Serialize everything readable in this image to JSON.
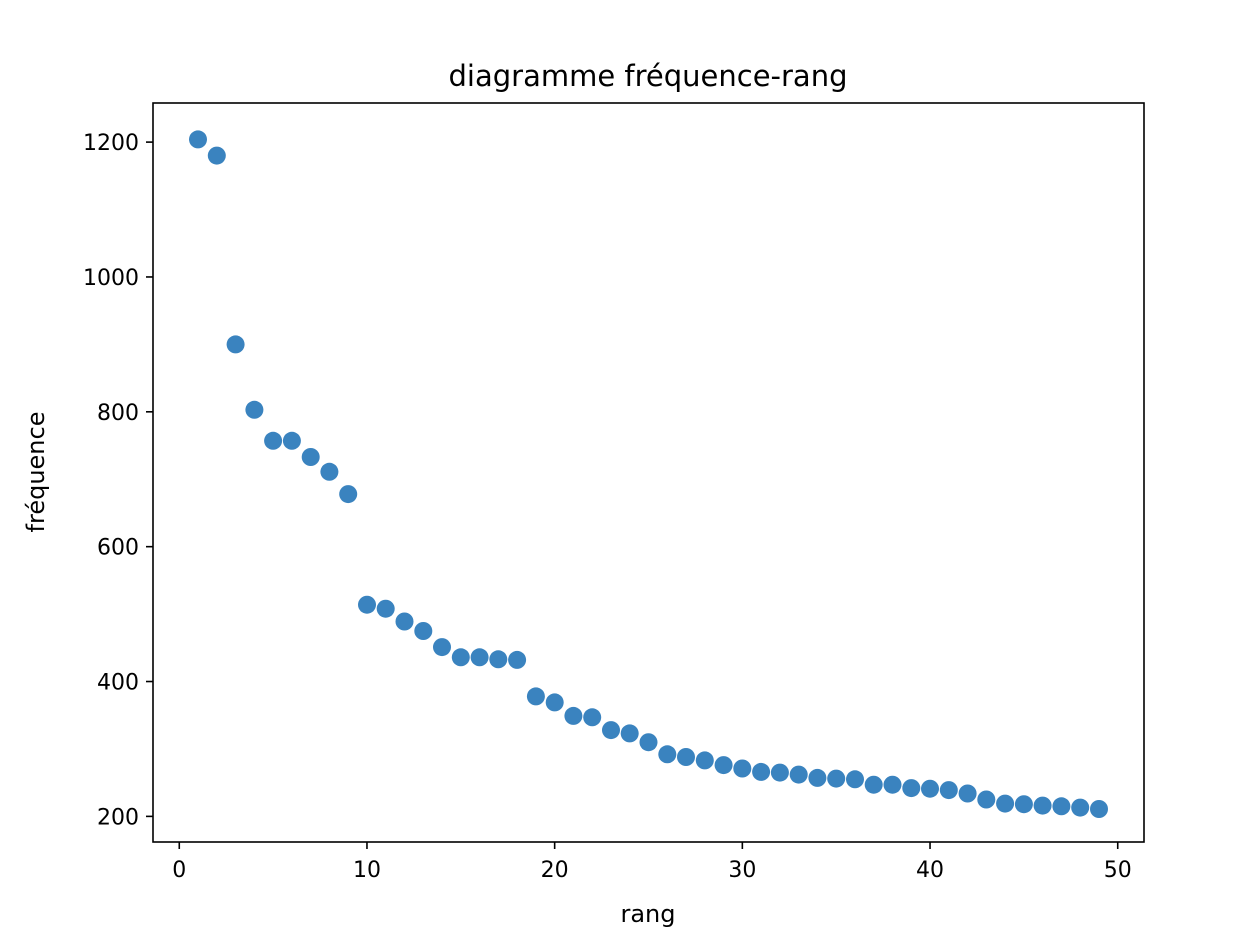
{
  "chart_data": {
    "type": "scatter",
    "title": "diagramme fréquence-rang",
    "xlabel": "rang",
    "ylabel": "fréquence",
    "xlim": [
      -1.4,
      51.4
    ],
    "ylim": [
      162,
      1258
    ],
    "xticks": [
      0,
      10,
      20,
      30,
      40,
      50
    ],
    "yticks": [
      200,
      400,
      600,
      800,
      1000,
      1200
    ],
    "grid": false,
    "marker_color": "#3a83bf",
    "series": [
      {
        "x": [
          1,
          2,
          3,
          4,
          5,
          6,
          7,
          8,
          9,
          10,
          11,
          12,
          13,
          14,
          15,
          16,
          17,
          18,
          19,
          20,
          21,
          22,
          23,
          24,
          25,
          26,
          27,
          28,
          29,
          30,
          31,
          32,
          33,
          34,
          35,
          36,
          37,
          38,
          39,
          40,
          41,
          42,
          43,
          44,
          45,
          46,
          47,
          48,
          49
        ],
        "y": [
          1204,
          1180,
          900,
          803,
          757,
          757,
          733,
          711,
          678,
          514,
          508,
          489,
          475,
          451,
          436,
          436,
          433,
          432,
          378,
          369,
          349,
          347,
          328,
          323,
          310,
          292,
          288,
          283,
          276,
          271,
          266,
          265,
          262,
          257,
          256,
          255,
          247,
          247,
          242,
          241,
          239,
          234,
          225,
          219,
          218,
          216,
          215,
          213,
          211
        ]
      }
    ]
  }
}
